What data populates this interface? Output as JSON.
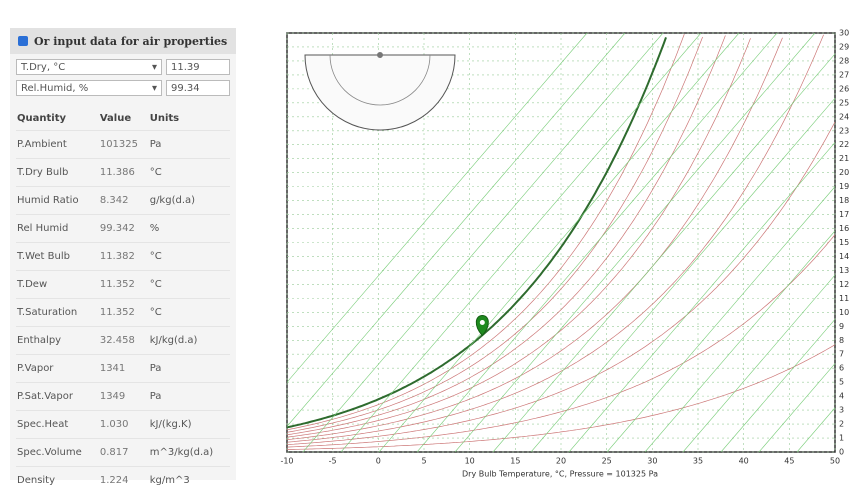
{
  "panel": {
    "heading": "Or input data for air properties",
    "inputs": [
      {
        "label": "T.Dry, °C",
        "value": "11.39"
      },
      {
        "label": "Rel.Humid, %",
        "value": "99.34"
      }
    ],
    "columns": [
      "Quantity",
      "Value",
      "Units"
    ],
    "rows": [
      [
        "P.Ambient",
        "101325",
        "Pa"
      ],
      [
        "T.Dry Bulb",
        "11.386",
        "°C"
      ],
      [
        "Humid Ratio",
        "8.342",
        "g/kg(d.a)"
      ],
      [
        "Rel Humid",
        "99.342",
        "%"
      ],
      [
        "T.Wet Bulb",
        "11.382",
        "°C"
      ],
      [
        "T.Dew",
        "11.352",
        "°C"
      ],
      [
        "T.Saturation",
        "11.352",
        "°C"
      ],
      [
        "Enthalpy",
        "32.458",
        "kJ/kg(d.a)"
      ],
      [
        "P.Vapor",
        "1341",
        "Pa"
      ],
      [
        "P.Sat.Vapor",
        "1349",
        "Pa"
      ],
      [
        "Spec.Heat",
        "1.030",
        "kJ/(kg.K)"
      ],
      [
        "Spec.Volume",
        "0.817",
        "m^3/kg(d.a)"
      ],
      [
        "Density",
        "1.224",
        "kg/m^3"
      ]
    ]
  },
  "chart": {
    "xlabel": "Dry Bulb Temperature, °C, Pressure = 101325 Pa",
    "xlim": [
      -10,
      50
    ],
    "xticks": [
      -10,
      -5,
      0,
      5,
      10,
      15,
      20,
      25,
      30,
      35,
      40,
      45,
      50
    ],
    "ylim": [
      0,
      30
    ],
    "yticks": [
      0,
      1,
      2,
      3,
      4,
      5,
      6,
      7,
      8,
      9,
      10,
      11,
      12,
      13,
      14,
      15,
      16,
      17,
      18,
      19,
      20,
      21,
      22,
      23,
      24,
      25,
      26,
      27,
      28,
      29,
      30
    ]
  }
}
